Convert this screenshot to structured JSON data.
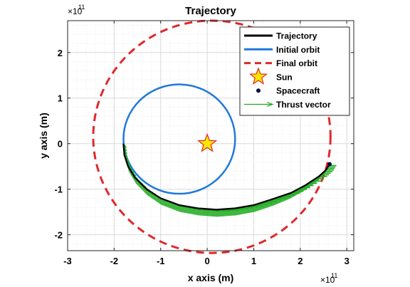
{
  "chart_data": {
    "type": "line",
    "title": "Trajectory",
    "xlabel": "x axis (m)",
    "ylabel": "y axis (m)",
    "x_exponent_label": "×10",
    "x_exponent_power": "11",
    "y_exponent_label": "×10",
    "y_exponent_power": "11",
    "xlim": [
      -3,
      3.15
    ],
    "ylim": [
      -2.35,
      2.7
    ],
    "xticks": [
      -3,
      -2,
      -1,
      0,
      1,
      2,
      3
    ],
    "yticks": [
      -2,
      -1,
      0,
      1,
      2
    ],
    "xtick_labels": [
      "-3",
      "-2",
      "-1",
      "0",
      "1",
      "2",
      "3"
    ],
    "ytick_labels": [
      "-2",
      "-1",
      "0",
      "1",
      "2"
    ],
    "grid": true,
    "legend_position": "top-right",
    "colors": {
      "trajectory": "#000000",
      "initial_orbit": "#1f78dc",
      "final_orbit": "#e0282c",
      "sun_fill": "#ffe600",
      "sun_edge": "#e0282c",
      "spacecraft": "#0b0b3d",
      "thrust": "#1faa1f"
    },
    "series": [
      {
        "name": "Trajectory",
        "style": "solid-line"
      },
      {
        "name": "Initial orbit",
        "style": "solid-line",
        "center": [
          -0.6,
          0.1
        ],
        "radius": 1.2
      },
      {
        "name": "Final orbit",
        "style": "dashed-line",
        "center": [
          0.1,
          0.15
        ],
        "radius": 2.55
      },
      {
        "name": "Sun",
        "style": "star-marker",
        "point": [
          0,
          0
        ]
      },
      {
        "name": "Spacecraft",
        "style": "dot-marker",
        "point": [
          2.63,
          -0.45
        ]
      },
      {
        "name": "Thrust vector",
        "style": "arrow"
      }
    ],
    "trajectory_points": [
      [
        -1.8,
        0.0
      ],
      [
        -1.78,
        -0.25
      ],
      [
        -1.7,
        -0.5
      ],
      [
        -1.55,
        -0.75
      ],
      [
        -1.3,
        -1.0
      ],
      [
        -1.0,
        -1.2
      ],
      [
        -0.6,
        -1.35
      ],
      [
        -0.2,
        -1.42
      ],
      [
        0.2,
        -1.45
      ],
      [
        0.6,
        -1.42
      ],
      [
        1.0,
        -1.35
      ],
      [
        1.4,
        -1.22
      ],
      [
        1.8,
        -1.08
      ],
      [
        2.1,
        -0.92
      ],
      [
        2.4,
        -0.72
      ],
      [
        2.55,
        -0.58
      ],
      [
        2.63,
        -0.45
      ]
    ]
  }
}
